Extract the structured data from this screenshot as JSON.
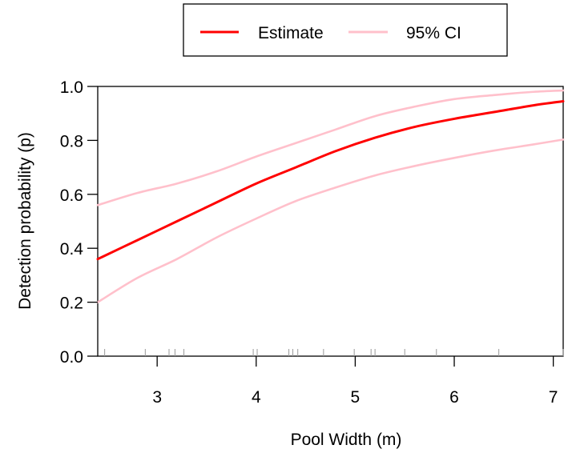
{
  "chart_data": {
    "type": "line",
    "title": "",
    "xlabel": "Pool Width (m)",
    "ylabel": "Detection probability (p)",
    "xlim": [
      2.4,
      7.1
    ],
    "ylim": [
      0.0,
      1.0
    ],
    "x_ticks": [
      "3",
      "4",
      "5",
      "6",
      "7"
    ],
    "y_ticks": [
      "0.0",
      "0.2",
      "0.4",
      "0.6",
      "0.8",
      "1.0"
    ],
    "grid": false,
    "legend": {
      "placement": "top-center",
      "boxed": true
    },
    "x": [
      2.4,
      2.8,
      3.2,
      3.6,
      4.0,
      4.4,
      4.8,
      5.2,
      5.6,
      6.0,
      6.4,
      6.8,
      7.1
    ],
    "series": [
      {
        "name": "Estimate",
        "color": "#ff0000",
        "values": [
          0.36,
          0.43,
          0.5,
          0.57,
          0.64,
          0.7,
          0.76,
          0.81,
          0.85,
          0.88,
          0.905,
          0.93,
          0.945
        ]
      },
      {
        "name": "95% CI",
        "color": "#ffc0cb",
        "values": [
          0.56,
          0.605,
          0.64,
          0.685,
          0.74,
          0.79,
          0.84,
          0.89,
          0.925,
          0.953,
          0.968,
          0.98,
          0.985
        ]
      },
      {
        "name": "",
        "color": "#ffc0cb",
        "values": [
          0.2,
          0.29,
          0.36,
          0.44,
          0.51,
          0.575,
          0.625,
          0.67,
          0.705,
          0.735,
          0.762,
          0.785,
          0.803
        ]
      }
    ],
    "rug": [
      2.47,
      2.88,
      3.12,
      3.18,
      3.27,
      3.97,
      4.01,
      4.33,
      4.37,
      4.42,
      4.68,
      4.99,
      5.16,
      5.2,
      5.5,
      5.82,
      6.45,
      7.1
    ]
  }
}
